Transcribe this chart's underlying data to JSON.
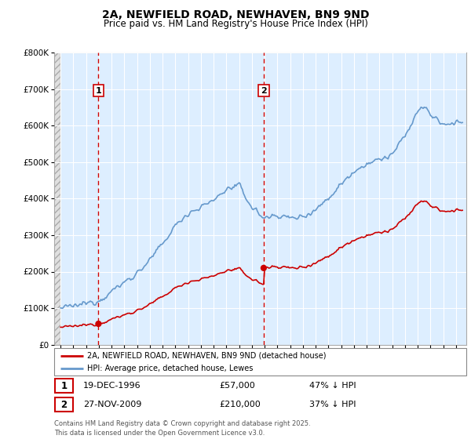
{
  "title": "2A, NEWFIELD ROAD, NEWHAVEN, BN9 9ND",
  "subtitle": "Price paid vs. HM Land Registry's House Price Index (HPI)",
  "legend_line1": "2A, NEWFIELD ROAD, NEWHAVEN, BN9 9ND (detached house)",
  "legend_line2": "HPI: Average price, detached house, Lewes",
  "note1_label": "1",
  "note1_date": "19-DEC-1996",
  "note1_price": "£57,000",
  "note1_hpi": "47% ↓ HPI",
  "note2_label": "2",
  "note2_date": "27-NOV-2009",
  "note2_price": "£210,000",
  "note2_hpi": "37% ↓ HPI",
  "footer": "Contains HM Land Registry data © Crown copyright and database right 2025.\nThis data is licensed under the Open Government Licence v3.0.",
  "sale1_year": 1996.97,
  "sale1_price": 57000,
  "sale2_year": 2009.92,
  "sale2_price": 210000,
  "red_color": "#cc0000",
  "blue_color": "#6699cc",
  "blue_fill": "#ddeeff",
  "vline_color": "#cc0000",
  "grid_color": "#cccccc",
  "ylim_min": 0,
  "ylim_max": 800000,
  "xlim_min": 1993.5,
  "xlim_max": 2025.8
}
